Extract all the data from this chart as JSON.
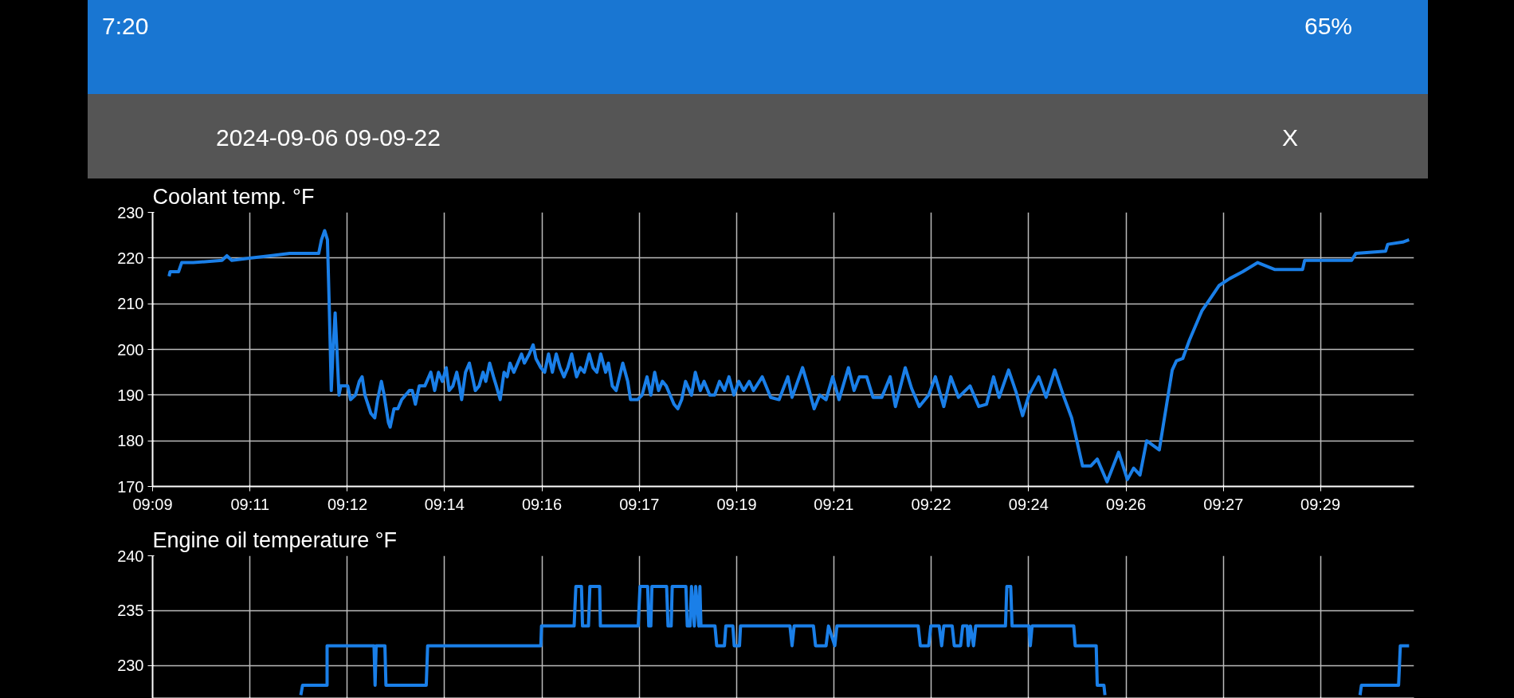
{
  "chart_data": [
    {
      "type": "line",
      "title": "Coolant temp. °F",
      "annotations": [
        "7:20",
        "65%",
        "2024-09-06 09-09-22",
        "X"
      ],
      "x": [
        9.1547,
        9.155,
        9.1574,
        9.1583,
        9.1616,
        9.1698,
        9.1712,
        9.1726,
        9.1781,
        9.1836,
        9.1891,
        9.1974,
        9.1982,
        9.1991,
        9.1999,
        9.2004,
        9.201,
        9.2015,
        9.2021,
        9.2026,
        9.2032,
        9.2037,
        9.2057,
        9.2065,
        9.2079,
        9.209,
        9.2098,
        9.2106,
        9.2123,
        9.2134,
        9.2142,
        9.2153,
        9.2161,
        9.2173,
        9.2178,
        9.2189,
        9.22,
        9.2211,
        9.2222,
        9.2233,
        9.2241,
        9.225,
        9.2261,
        9.2277,
        9.2294,
        9.2305,
        9.2316,
        9.2327,
        9.2338,
        9.2346,
        9.2357,
        9.2368,
        9.2376,
        9.2382,
        9.2393,
        9.2404,
        9.241,
        9.2421,
        9.2432,
        9.2443,
        9.2451,
        9.2462,
        9.2473,
        9.2481,
        9.2492,
        9.2503,
        9.2512,
        9.252,
        9.2531,
        9.2542,
        9.2553,
        9.2561,
        9.2575,
        9.2586,
        9.2594,
        9.2608,
        9.2619,
        9.263,
        9.2641,
        9.2652,
        9.2663,
        9.2674,
        9.2685,
        9.2696,
        9.271,
        9.2721,
        9.2732,
        9.2746,
        9.2757,
        9.2768,
        9.2779,
        9.2793,
        9.2801,
        9.2812,
        9.2823,
        9.2842,
        9.2856,
        9.2864,
        9.2884,
        9.2897,
        9.2911,
        9.2922,
        9.2933,
        9.2944,
        9.2955,
        9.2966,
        9.2977,
        9.2988,
        9.2999,
        9.301,
        9.3021,
        9.3038,
        9.3049,
        9.3063,
        9.3074,
        9.309,
        9.3104,
        9.3118,
        9.3132,
        9.3145,
        9.3159,
        9.3173,
        9.3187,
        9.3203,
        9.3215,
        9.324,
        9.3264,
        9.3288,
        9.3313,
        9.3325,
        9.3355,
        9.3374,
        9.3388,
        9.3404,
        9.3422,
        9.3441,
        9.3459,
        9.3486,
        9.3502,
        9.3517,
        9.3538,
        9.3556,
        9.3581,
        9.3605,
        9.362,
        9.3648,
        9.3666,
        9.3688,
        9.3715,
        9.3734,
        9.3758,
        9.3778,
        9.38,
        9.3833,
        9.3858,
        9.388,
        9.39,
        9.3916,
        9.3943,
        9.3965,
        9.3983,
        9.4001,
        9.4029,
        9.405,
        9.4075,
        9.4099,
        9.4123,
        9.4154,
        9.4178,
        9.4196,
        9.4224,
        9.4257,
        9.4282,
        9.43,
        9.4318,
        9.4337,
        9.4373,
        9.441,
        9.4422,
        9.444,
        9.4459,
        9.4495,
        9.4513,
        9.4544,
        9.4574,
        9.4611,
        9.4654,
        9.4702,
        9.4782,
        9.4788,
        9.4922,
        9.4934,
        9.5019,
        9.5025,
        9.5068,
        9.5086
      ],
      "series": [
        {
          "color": "#1a7fe8",
          "values": [
            216,
            217,
            217,
            219,
            219,
            219.5,
            220.5,
            219.5,
            220,
            220.5,
            221,
            221,
            224,
            226,
            224,
            210,
            191,
            200,
            208,
            200,
            190,
            192,
            192,
            189,
            190,
            193,
            194,
            190,
            186,
            185,
            189,
            193,
            190,
            184,
            183,
            187,
            187,
            189,
            190,
            191,
            191,
            188,
            192,
            192,
            195,
            191,
            195,
            193,
            196,
            191,
            192,
            195,
            192,
            189,
            195,
            197,
            195,
            191,
            192,
            195,
            193,
            197,
            194,
            192,
            189,
            195,
            194,
            197,
            195,
            197,
            199,
            197,
            199,
            201,
            198,
            196,
            195,
            199,
            195,
            199,
            196,
            194,
            196,
            199,
            194,
            196,
            195,
            199,
            196,
            195,
            199,
            195,
            197,
            192,
            191,
            197,
            193,
            189,
            189,
            190,
            194,
            190,
            195,
            191,
            193,
            192,
            190,
            188,
            187,
            189,
            193,
            190,
            195,
            191,
            193,
            190,
            190,
            193,
            191,
            194,
            190,
            193,
            191,
            193,
            191,
            194,
            189.5,
            189,
            194,
            189.5,
            196,
            191,
            187,
            190,
            189,
            194,
            189,
            196,
            191,
            194,
            194,
            189.5,
            189.5,
            194,
            187.5,
            196,
            191.5,
            187.5,
            190,
            194,
            187.5,
            194,
            189.5,
            192,
            187.5,
            188,
            194,
            189.5,
            195.5,
            190.5,
            185.5,
            190,
            194,
            189.5,
            195.5,
            190,
            185,
            174.5,
            174.5,
            176,
            171,
            177.5,
            171.5,
            174,
            172.5,
            180,
            178,
            195.5,
            197.5,
            198,
            202,
            208.5,
            210.5,
            214,
            215.5,
            217,
            219,
            217.5,
            217.5,
            219.5,
            219.5,
            221,
            221.5,
            223,
            223.5,
            224
          ]
        }
      ],
      "xlim": [
        9.15,
        9.51
      ],
      "ylim": [
        170,
        230
      ],
      "yticks": [
        170,
        180,
        190,
        200,
        210,
        220,
        230
      ],
      "xticks": [
        {
          "value": 9.15,
          "label": "09:09"
        },
        {
          "value": 9.1778,
          "label": "09:11"
        },
        {
          "value": 9.2056,
          "label": "09:12"
        },
        {
          "value": 9.2333,
          "label": "09:14"
        },
        {
          "value": 9.2611,
          "label": "09:16"
        },
        {
          "value": 9.2889,
          "label": "09:17"
        },
        {
          "value": 9.3167,
          "label": "09:19"
        },
        {
          "value": 9.3444,
          "label": "09:21"
        },
        {
          "value": 9.3722,
          "label": "09:22"
        },
        {
          "value": 9.4,
          "label": "09:24"
        },
        {
          "value": 9.4278,
          "label": "09:26"
        },
        {
          "value": 9.4556,
          "label": "09:27"
        },
        {
          "value": 9.4833,
          "label": "09:29"
        }
      ],
      "grid": true,
      "marker": "none",
      "line_style": "solid"
    },
    {
      "type": "line",
      "title": "Engine oil temperature  °F",
      "x": [
        9.1923,
        9.1928,
        9.1998,
        9.1998,
        9.2132,
        9.2135,
        9.2138,
        9.2163,
        9.2166,
        9.2281,
        9.2285,
        9.2608,
        9.261,
        9.2703,
        9.2708,
        9.2724,
        9.2727,
        9.2744,
        9.2748,
        9.2776,
        9.2778,
        9.2886,
        9.2891,
        9.2913,
        9.2916,
        9.2922,
        9.2925,
        9.2967,
        9.2971,
        9.298,
        9.2983,
        9.3022,
        9.3026,
        9.3034,
        9.3038,
        9.3046,
        9.305,
        9.3059,
        9.3062,
        9.3065,
        9.3105,
        9.311,
        9.3132,
        9.3136,
        9.3156,
        9.316,
        9.3175,
        9.3178,
        9.3199,
        9.3211,
        9.3319,
        9.3325,
        9.3331,
        9.3386,
        9.3392,
        9.3422,
        9.3429,
        9.3447,
        9.3453,
        9.3685,
        9.3691,
        9.3715,
        9.3721,
        9.3745,
        9.3752,
        9.3758,
        9.3782,
        9.3788,
        9.3806,
        9.3812,
        9.3825,
        9.3828,
        9.3834,
        9.3843,
        9.3849,
        9.3934,
        9.3938,
        9.3949,
        9.3953,
        9.4001,
        9.4005,
        9.401,
        9.4129,
        9.4133,
        9.4193,
        9.4196,
        9.4215,
        9.4218,
        9.4539,
        9.4946,
        9.495,
        9.5056,
        9.5061,
        9.5086
      ],
      "series": [
        {
          "color": "#1a7fe8",
          "values": [
            227.3,
            228.2,
            228.2,
            231.8,
            231.8,
            228.2,
            231.8,
            231.8,
            228.2,
            228.2,
            231.8,
            231.8,
            233.6,
            233.6,
            237.2,
            237.2,
            233.6,
            233.6,
            237.2,
            237.2,
            233.6,
            233.6,
            237.2,
            237.2,
            233.6,
            233.6,
            237.2,
            237.2,
            233.6,
            233.6,
            237.2,
            237.2,
            233.6,
            233.6,
            237.2,
            233.6,
            237.2,
            233.6,
            237.2,
            233.6,
            233.6,
            231.8,
            231.8,
            233.6,
            233.6,
            231.8,
            231.8,
            233.6,
            233.6,
            233.6,
            233.6,
            231.8,
            233.6,
            233.6,
            231.8,
            231.8,
            233.6,
            231.8,
            233.6,
            233.6,
            231.8,
            231.8,
            233.6,
            233.6,
            231.8,
            233.6,
            233.6,
            231.8,
            231.8,
            233.6,
            233.6,
            231.8,
            233.6,
            231.8,
            233.6,
            233.6,
            237.2,
            237.2,
            233.6,
            233.6,
            231.8,
            233.6,
            233.6,
            231.8,
            231.8,
            228.2,
            228.2,
            227.3,
            null,
            227.3,
            228.2,
            228.2,
            231.8,
            231.8
          ]
        }
      ],
      "xlim": [
        9.15,
        9.51
      ],
      "ylim": [
        227,
        240
      ],
      "yticks": [
        230,
        235,
        240
      ],
      "xticks": [
        {
          "value": 9.15,
          "label": null
        },
        {
          "value": 9.1778,
          "label": null
        },
        {
          "value": 9.2056,
          "label": null
        },
        {
          "value": 9.2333,
          "label": null
        },
        {
          "value": 9.2611,
          "label": null
        },
        {
          "value": 9.2889,
          "label": null
        },
        {
          "value": 9.3167,
          "label": null
        },
        {
          "value": 9.3444,
          "label": null
        },
        {
          "value": 9.3722,
          "label": null
        },
        {
          "value": 9.4,
          "label": null
        },
        {
          "value": 9.4278,
          "label": null
        },
        {
          "value": 9.4556,
          "label": null
        },
        {
          "value": 9.4833,
          "label": null
        }
      ],
      "tick_labels": "y",
      "grid": true,
      "marker": "none",
      "line_style": "solid"
    }
  ]
}
